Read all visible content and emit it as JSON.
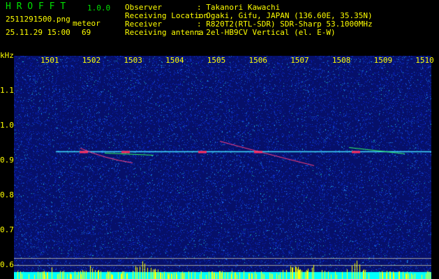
{
  "app": {
    "name": "H R O F F T",
    "version": "1.0.0"
  },
  "file": {
    "name": "2511291500.png",
    "datetime": "25.11.29 15:00"
  },
  "count": {
    "label": "meteor",
    "value": "69"
  },
  "info": [
    {
      "label": "Observer",
      "value": ": Takanori Kawachi"
    },
    {
      "label": "Receiving Location",
      "value": ": Ogaki, Gifu, JAPAN (136.60E, 35.35N)"
    },
    {
      "label": "Receiver",
      "value": ": R820T2(RTL-SDR) SDR-Sharp 53.1000MHz"
    },
    {
      "label": "Receiving antenna",
      "value": ": 2el-HB9CV Vertical (el. E-W)"
    }
  ],
  "axis": {
    "unit": "kHz",
    "y_ticks": [
      "1.1",
      "1.0",
      "0.9",
      "0.8",
      "0.7",
      "0.6"
    ],
    "x_ticks": [
      "1501",
      "1502",
      "1503",
      "1504",
      "1505",
      "1506",
      "1507",
      "1508",
      "1509",
      "1510"
    ]
  },
  "colors": {
    "text": "#ffff00",
    "title": "#00e000",
    "background_noise": "#0a1aa0",
    "histogram": "#ffff00",
    "baseline": "#00ffff"
  }
}
